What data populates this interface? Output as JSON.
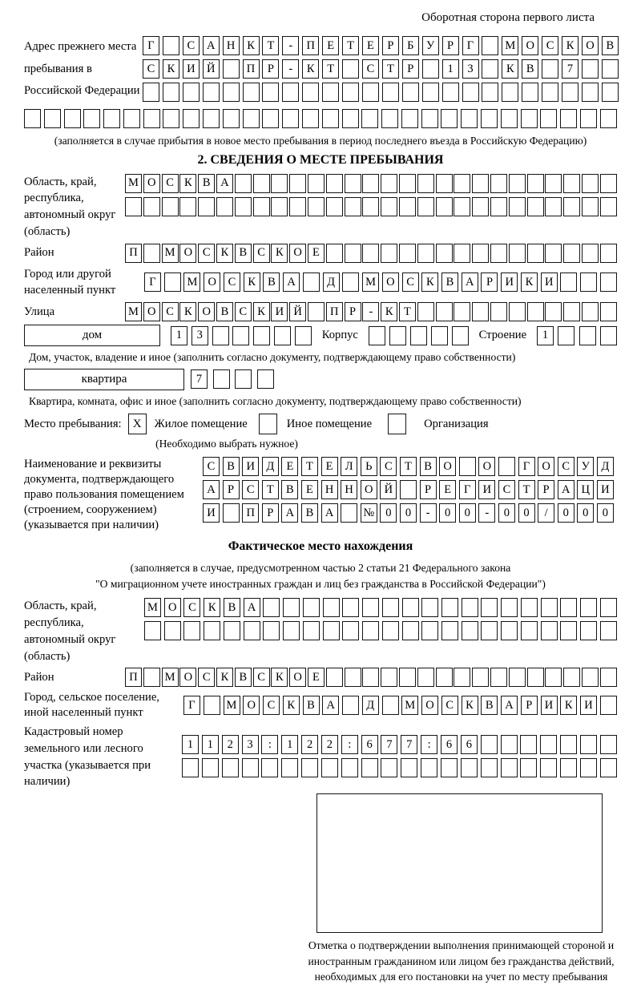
{
  "page": {
    "header_note": "Оборотная сторона первого листа"
  },
  "prev_address": {
    "label": "Адрес прежнего места пребывания в Российской Федерации",
    "rows": [
      {
        "chars": "Г САНКТ-ПЕТЕРБУРГ МОСКОВ",
        "len": 24
      },
      {
        "chars": "СКИЙ ПР-КТ СТР 13 КВ 7",
        "len": 24
      },
      {
        "chars": "",
        "len": 24
      }
    ],
    "full_row": {
      "chars": "",
      "len": 30
    },
    "note": "(заполняется в случае прибытия в новое место пребывания в период последнего въезда в Российскую Федерацию)"
  },
  "section2": {
    "title": "2. СВЕДЕНИЯ О МЕСТЕ ПРЕБЫВАНИЯ",
    "region": {
      "label": "Область, край, республика, автономный округ (область)",
      "rows": [
        {
          "chars": "МОСКВА",
          "len": 27
        },
        {
          "chars": "",
          "len": 27
        }
      ]
    },
    "district": {
      "label": "Район",
      "row": {
        "chars": "П МОСКВСКОЕ",
        "len": 27
      }
    },
    "city": {
      "label": "Город или другой населенный пункт",
      "row": {
        "chars": "Г МОСКВА Д МОСКВАРИКИ",
        "len": 24
      }
    },
    "street": {
      "label": "Улица",
      "row": {
        "chars": "МОСКОВСКИЙ ПР-КТ",
        "len": 27
      }
    },
    "house": {
      "label_box": "дом",
      "cells": {
        "chars": "13",
        "len": 7
      },
      "korpus_label": "Корпус",
      "korpus_cells": {
        "chars": "",
        "len": 5
      },
      "stroenie_label": "Строение",
      "stroenie_cells": {
        "chars": "1",
        "len": 4
      }
    },
    "house_note": "Дом, участок, владение и иное (заполнить согласно документу, подтверждающему право собственности)",
    "apartment": {
      "label_box": "квартира",
      "cells": {
        "chars": "7",
        "len": 4
      }
    },
    "apartment_note": "Квартира, комната, офис и иное (заполнить согласно документу, подтверждающему право собственности)",
    "stay_type": {
      "label": "Место пребывания:",
      "options": [
        {
          "label": "Жилое помещение",
          "mark": "X"
        },
        {
          "label": "Иное помещение",
          "mark": ""
        },
        {
          "label": "Организация",
          "mark": ""
        }
      ],
      "note": "(Необходимо выбрать нужное)"
    },
    "document": {
      "label": "Наименование и реквизиты документа, подтверждающего право пользования помещением (строением, сооружением) (указывается при наличии)",
      "rows": [
        {
          "chars": "СВИДЕТЕЛЬСТВО О ГОСУД",
          "len": 21
        },
        {
          "chars": "АРСТВЕННОЙ РЕГИСТРАЦИ",
          "len": 21
        },
        {
          "chars": "И ПРАВА №00-00-00/000",
          "len": 21
        }
      ]
    }
  },
  "actual_location": {
    "title": "Фактическое место нахождения",
    "note_line1": "(заполняется в случае, предусмотренном частью 2 статьи 21 Федерального закона",
    "note_line2": "\"О миграционном учете иностранных граждан и лиц без гражданства в Российской Федерации\")",
    "region": {
      "label": "Область, край, республика, автономный округ (область)",
      "rows": [
        {
          "chars": "МОСКВА",
          "len": 24
        },
        {
          "chars": "",
          "len": 24
        }
      ]
    },
    "district": {
      "label": "Район",
      "row": {
        "chars": "П МОСКВСКОЕ",
        "len": 27
      }
    },
    "city": {
      "label": "Город, сельское поселение, иной населенный пункт",
      "row": {
        "chars": "Г МОСКВА Д МОСКВАРИКИ",
        "len": 22
      }
    },
    "cadastral": {
      "label": "Кадастровый номер земельного или лесного участка (указывается при наличии)",
      "rows": [
        {
          "chars": "1123:122:677:66",
          "len": 22
        },
        {
          "chars": "",
          "len": 22
        }
      ]
    },
    "stamp_note": "Отметка о подтверждении выполнения принимающей стороной и иностранным гражданином или лицом без гражданства действий, необходимых для его постановки на учет по месту пребывания"
  }
}
